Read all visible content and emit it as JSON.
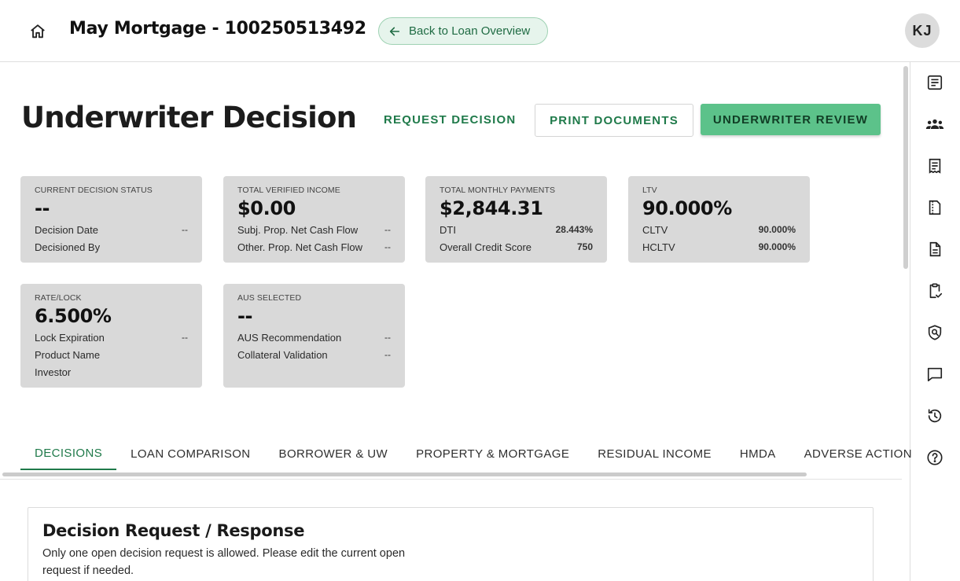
{
  "header": {
    "loan_title": "May Mortgage - 100250513492",
    "back_label": "Back to Loan Overview",
    "avatar_initials": "KJ"
  },
  "page": {
    "title": "Underwriter Decision",
    "actions": {
      "request_decision": "REQUEST DECISION",
      "print_documents": "PRINT DOCUMENTS",
      "underwriter_review": "UNDERWRITER REVIEW"
    }
  },
  "cards": {
    "decision_status": {
      "label": "CURRENT DECISION STATUS",
      "value": "--",
      "rows": [
        {
          "label": "Decision Date",
          "value": "--"
        },
        {
          "label": "Decisioned By",
          "value": ""
        }
      ]
    },
    "verified_income": {
      "label": "TOTAL VERIFIED INCOME",
      "value": "$0.00",
      "rows": [
        {
          "label": "Subj. Prop. Net Cash Flow",
          "value": "--"
        },
        {
          "label": "Other. Prop. Net Cash Flow",
          "value": "--"
        }
      ]
    },
    "monthly_payments": {
      "label": "TOTAL MONTHLY PAYMENTS",
      "value": "$2,844.31",
      "rows": [
        {
          "label": "DTI",
          "value": "28.443%"
        },
        {
          "label": "Overall Credit Score",
          "value": "750"
        }
      ]
    },
    "ltv": {
      "label": "LTV",
      "value": "90.000%",
      "rows": [
        {
          "label": "CLTV",
          "value": "90.000%"
        },
        {
          "label": "HCLTV",
          "value": "90.000%"
        }
      ]
    },
    "rate_lock": {
      "label": "RATE/LOCK",
      "value": "6.500%",
      "rows": [
        {
          "label": "Lock Expiration",
          "value": "--"
        },
        {
          "label": "Product Name",
          "value": ""
        },
        {
          "label": "Investor",
          "value": ""
        }
      ]
    },
    "aus": {
      "label": "AUS SELECTED",
      "value": "--",
      "rows": [
        {
          "label": "AUS Recommendation",
          "value": "--"
        },
        {
          "label": "Collateral Validation",
          "value": "--"
        }
      ]
    }
  },
  "tabs": [
    {
      "label": "DECISIONS",
      "active": true
    },
    {
      "label": "LOAN COMPARISON",
      "active": false
    },
    {
      "label": "BORROWER & UW",
      "active": false
    },
    {
      "label": "PROPERTY & MORTGAGE",
      "active": false
    },
    {
      "label": "RESIDUAL INCOME",
      "active": false
    },
    {
      "label": "HMDA",
      "active": false
    },
    {
      "label": "ADVERSE ACTION",
      "active": false
    }
  ],
  "panel": {
    "title": "Decision Request / Response",
    "text": "Only one open decision request is allowed. Please edit the current open request if needed."
  },
  "rail_icons": [
    "summary-icon",
    "borrowers-icon",
    "receipt-icon",
    "document-pages-icon",
    "file-text-icon",
    "clipboard-check-icon",
    "shield-search-icon",
    "chat-icon",
    "history-icon",
    "help-icon"
  ],
  "colors": {
    "accent_green": "#1f7a4a",
    "button_green": "#5cc28a",
    "back_button_bg": "#e6f4ec",
    "card_bg": "#d9d9d9"
  }
}
